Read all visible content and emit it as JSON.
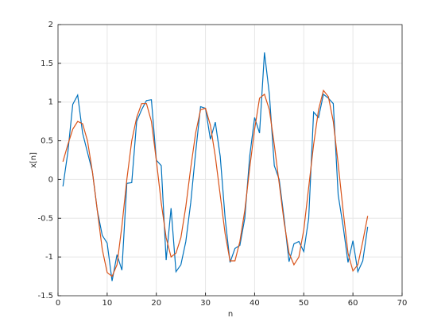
{
  "chart_data": {
    "type": "line",
    "xlabel": "n",
    "ylabel": "x[n]",
    "x": [
      1,
      2,
      3,
      4,
      5,
      6,
      7,
      8,
      9,
      10,
      11,
      12,
      13,
      14,
      15,
      16,
      17,
      18,
      19,
      20,
      21,
      22,
      23,
      24,
      25,
      26,
      27,
      28,
      29,
      30,
      31,
      32,
      33,
      34,
      35,
      36,
      37,
      38,
      39,
      40,
      41,
      42,
      43,
      44,
      45,
      46,
      47,
      48,
      49,
      50,
      51,
      52,
      53,
      54,
      55,
      56,
      57,
      58,
      59,
      60,
      61,
      62,
      63
    ],
    "series": [
      {
        "color": "#0072bd",
        "values": [
          -0.09,
          0.35,
          0.97,
          1.09,
          0.6,
          0.35,
          0.1,
          -0.4,
          -0.72,
          -0.82,
          -1.31,
          -0.97,
          -1.17,
          -0.05,
          -0.04,
          0.75,
          0.9,
          1.02,
          1.03,
          0.25,
          0.18,
          -1.04,
          -0.37,
          -1.19,
          -1.1,
          -0.8,
          -0.3,
          0.35,
          0.94,
          0.92,
          0.52,
          0.74,
          0.3,
          -0.5,
          -1.07,
          -0.89,
          -0.85,
          -0.5,
          0.3,
          0.8,
          0.6,
          1.64,
          1.1,
          0.18,
          0.0,
          -0.5,
          -1.06,
          -0.83,
          -0.8,
          -0.93,
          -0.5,
          0.87,
          0.8,
          1.1,
          1.05,
          0.98,
          -0.2,
          -0.6,
          -1.07,
          -0.79,
          -1.19,
          -1.05,
          -0.61
        ]
      },
      {
        "color": "#d95319",
        "values": [
          0.23,
          0.45,
          0.65,
          0.75,
          0.72,
          0.5,
          0.1,
          -0.4,
          -0.9,
          -1.2,
          -1.25,
          -1.1,
          -0.6,
          0.0,
          0.5,
          0.8,
          0.98,
          0.98,
          0.75,
          0.25,
          -0.3,
          -0.75,
          -1.0,
          -0.95,
          -0.75,
          -0.35,
          0.15,
          0.6,
          0.9,
          0.92,
          0.7,
          0.3,
          -0.2,
          -0.7,
          -1.05,
          -1.05,
          -0.8,
          -0.4,
          0.15,
          0.65,
          1.05,
          1.1,
          0.9,
          0.45,
          -0.05,
          -0.55,
          -0.95,
          -1.1,
          -1.0,
          -0.65,
          -0.1,
          0.45,
          0.9,
          1.15,
          1.07,
          0.75,
          0.2,
          -0.4,
          -0.95,
          -1.18,
          -1.1,
          -0.8,
          -0.47
        ]
      }
    ],
    "xlim": [
      0,
      70
    ],
    "xticks": [
      0,
      10,
      20,
      30,
      40,
      50,
      60,
      70
    ],
    "ylim": [
      -1.5,
      2
    ],
    "yticks": [
      -1.5,
      -1,
      -0.5,
      0,
      0.5,
      1,
      1.5,
      2
    ],
    "grid": true
  }
}
